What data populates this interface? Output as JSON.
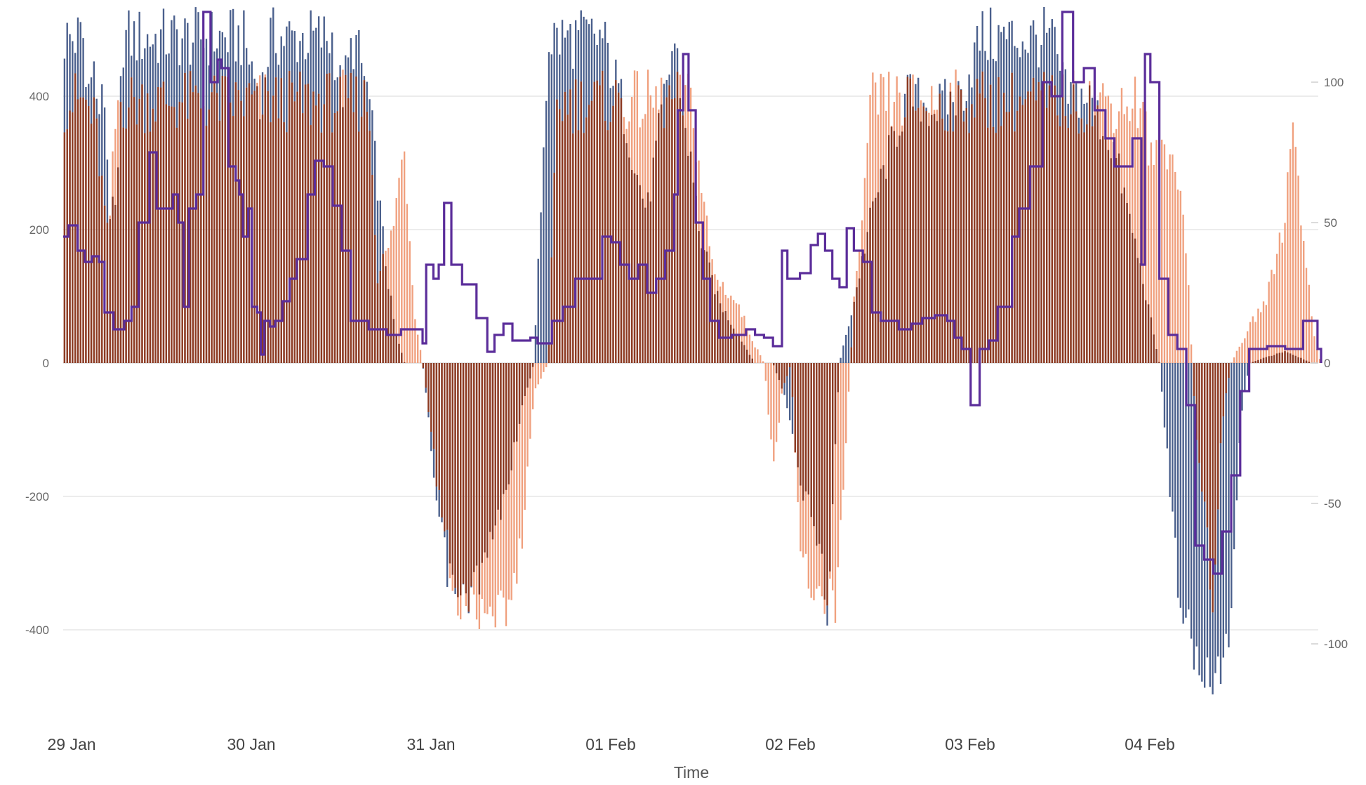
{
  "chart_data": {
    "type": "bar",
    "title": "",
    "xlabel": "Time",
    "ylabel_left": "",
    "ylabel_right": "",
    "x_ticks": [
      "29 Jan",
      "30 Jan",
      "31 Jan",
      "01 Feb",
      "02 Feb",
      "03 Feb",
      "04 Feb"
    ],
    "x_range_days": [
      0,
      7
    ],
    "ylim_left": [
      -540,
      540
    ],
    "ylim_right": [
      -130,
      130
    ],
    "y_ticks_left": [
      "-400",
      "-200",
      "0",
      "200",
      "400"
    ],
    "y_ticks_right": [
      "-100",
      "-50",
      "0",
      "50",
      "100"
    ],
    "grid": true,
    "legend": "none",
    "colors": {
      "blue_series": "#4a5f8c",
      "orange_series": "#f0a07e",
      "overlap": "#8c3a22",
      "line_series": "#5b2d9a",
      "grid": "#e6e6e6",
      "tick_text": "#666666"
    },
    "series": [
      {
        "type": "bar",
        "axis": "left",
        "color": "blue_series",
        "keypoints": [
          [
            0,
            535
          ],
          [
            0.12,
            535
          ],
          [
            0.13,
            410
          ],
          [
            0.16,
            535
          ],
          [
            0.19,
            410
          ],
          [
            0.23,
            440
          ],
          [
            0.26,
            250
          ],
          [
            0.3,
            250
          ],
          [
            0.33,
            535
          ],
          [
            1.0,
            535
          ],
          [
            1.1,
            440
          ],
          [
            1.15,
            535
          ],
          [
            1.5,
            535
          ],
          [
            1.55,
            440
          ],
          [
            1.62,
            535
          ],
          [
            1.7,
            440
          ],
          [
            1.8,
            150
          ],
          [
            1.85,
            50
          ],
          [
            1.9,
            0
          ],
          [
            2.0,
            0
          ],
          [
            2.08,
            -240
          ],
          [
            2.15,
            -360
          ],
          [
            2.22,
            -400
          ],
          [
            2.35,
            -330
          ],
          [
            2.45,
            -230
          ],
          [
            2.55,
            -80
          ],
          [
            2.62,
            0
          ],
          [
            2.7,
            535
          ],
          [
            3.0,
            535
          ],
          [
            3.1,
            440
          ],
          [
            3.2,
            300
          ],
          [
            3.25,
            250
          ],
          [
            3.3,
            350
          ],
          [
            3.4,
            535
          ],
          [
            3.55,
            200
          ],
          [
            3.65,
            100
          ],
          [
            3.75,
            50
          ],
          [
            3.85,
            0
          ],
          [
            3.95,
            0
          ],
          [
            4.02,
            -60
          ],
          [
            4.1,
            -200
          ],
          [
            4.2,
            -280
          ],
          [
            4.25,
            -420
          ],
          [
            4.32,
            0
          ],
          [
            4.4,
            100
          ],
          [
            4.5,
            250
          ],
          [
            4.6,
            350
          ],
          [
            4.7,
            440
          ],
          [
            4.85,
            420
          ],
          [
            5.0,
            440
          ],
          [
            5.1,
            535
          ],
          [
            5.5,
            535
          ],
          [
            5.58,
            440
          ],
          [
            5.7,
            440
          ],
          [
            5.85,
            350
          ],
          [
            6.0,
            150
          ],
          [
            6.1,
            0
          ],
          [
            6.2,
            -350
          ],
          [
            6.3,
            -500
          ],
          [
            6.45,
            -500
          ],
          [
            6.5,
            -400
          ],
          [
            6.55,
            -100
          ],
          [
            6.6,
            0
          ],
          [
            6.8,
            20
          ],
          [
            6.95,
            0
          ],
          [
            7.0,
            0
          ]
        ]
      },
      {
        "type": "bar",
        "axis": "left",
        "color": "orange_series",
        "keypoints": [
          [
            0,
            440
          ],
          [
            0.12,
            440
          ],
          [
            0.18,
            400
          ],
          [
            0.25,
            200
          ],
          [
            0.3,
            440
          ],
          [
            1.0,
            440
          ],
          [
            1.5,
            440
          ],
          [
            1.7,
            440
          ],
          [
            1.75,
            150
          ],
          [
            1.82,
            200
          ],
          [
            1.9,
            370
          ],
          [
            1.95,
            100
          ],
          [
            2.0,
            0
          ],
          [
            2.08,
            -200
          ],
          [
            2.18,
            -405
          ],
          [
            2.5,
            -405
          ],
          [
            2.55,
            -300
          ],
          [
            2.62,
            -50
          ],
          [
            2.7,
            0
          ],
          [
            2.75,
            440
          ],
          [
            3.5,
            440
          ],
          [
            3.55,
            300
          ],
          [
            3.62,
            150
          ],
          [
            3.75,
            100
          ],
          [
            3.85,
            30
          ],
          [
            3.9,
            0
          ],
          [
            3.95,
            -180
          ],
          [
            4.0,
            -50
          ],
          [
            4.05,
            0
          ],
          [
            4.1,
            -300
          ],
          [
            4.2,
            -405
          ],
          [
            4.3,
            -405
          ],
          [
            4.4,
            100
          ],
          [
            4.45,
            250
          ],
          [
            4.5,
            440
          ],
          [
            5.45,
            440
          ],
          [
            5.6,
            440
          ],
          [
            6.0,
            440
          ],
          [
            6.05,
            340
          ],
          [
            6.2,
            340
          ],
          [
            6.25,
            200
          ],
          [
            6.3,
            -100
          ],
          [
            6.4,
            -400
          ],
          [
            6.45,
            -100
          ],
          [
            6.5,
            0
          ],
          [
            6.6,
            60
          ],
          [
            6.7,
            110
          ],
          [
            6.8,
            250
          ],
          [
            6.85,
            440
          ],
          [
            6.9,
            200
          ],
          [
            6.97,
            30
          ],
          [
            7.0,
            0
          ]
        ]
      },
      {
        "type": "line",
        "axis": "right",
        "color": "line_series",
        "step": true,
        "keypoints": [
          [
            0,
            45
          ],
          [
            0.03,
            49
          ],
          [
            0.08,
            40
          ],
          [
            0.12,
            36
          ],
          [
            0.16,
            38
          ],
          [
            0.2,
            36
          ],
          [
            0.23,
            18
          ],
          [
            0.28,
            12
          ],
          [
            0.34,
            15
          ],
          [
            0.38,
            20
          ],
          [
            0.42,
            50
          ],
          [
            0.48,
            75
          ],
          [
            0.52,
            55
          ],
          [
            0.57,
            55
          ],
          [
            0.61,
            60
          ],
          [
            0.64,
            50
          ],
          [
            0.67,
            20
          ],
          [
            0.7,
            55
          ],
          [
            0.74,
            60
          ],
          [
            0.78,
            125
          ],
          [
            0.82,
            100
          ],
          [
            0.86,
            108
          ],
          [
            0.88,
            105
          ],
          [
            0.92,
            70
          ],
          [
            0.96,
            65
          ],
          [
            0.98,
            60
          ],
          [
            1.0,
            45
          ],
          [
            1.03,
            55
          ],
          [
            1.05,
            20
          ],
          [
            1.08,
            18
          ],
          [
            1.1,
            3
          ],
          [
            1.12,
            15
          ],
          [
            1.15,
            13
          ],
          [
            1.18,
            15
          ],
          [
            1.22,
            22
          ],
          [
            1.26,
            30
          ],
          [
            1.3,
            37
          ],
          [
            1.36,
            60
          ],
          [
            1.4,
            72
          ],
          [
            1.45,
            70
          ],
          [
            1.5,
            56
          ],
          [
            1.55,
            40
          ],
          [
            1.6,
            15
          ],
          [
            1.7,
            12
          ],
          [
            1.75,
            12
          ],
          [
            1.8,
            10
          ],
          [
            1.88,
            12
          ],
          [
            1.95,
            12
          ],
          [
            2.0,
            7
          ],
          [
            2.02,
            35
          ],
          [
            2.06,
            30
          ],
          [
            2.09,
            35
          ],
          [
            2.12,
            57
          ],
          [
            2.16,
            35
          ],
          [
            2.22,
            28
          ],
          [
            2.3,
            16
          ],
          [
            2.36,
            4
          ],
          [
            2.4,
            10
          ],
          [
            2.45,
            14
          ],
          [
            2.5,
            8
          ],
          [
            2.55,
            8
          ],
          [
            2.6,
            9
          ],
          [
            2.64,
            7
          ],
          [
            2.68,
            7
          ],
          [
            2.72,
            15
          ],
          [
            2.78,
            20
          ],
          [
            2.85,
            30
          ],
          [
            3.0,
            45
          ],
          [
            3.05,
            43
          ],
          [
            3.1,
            35
          ],
          [
            3.15,
            30
          ],
          [
            3.2,
            35
          ],
          [
            3.25,
            25
          ],
          [
            3.3,
            30
          ],
          [
            3.35,
            40
          ],
          [
            3.4,
            60
          ],
          [
            3.42,
            90
          ],
          [
            3.45,
            110
          ],
          [
            3.48,
            90
          ],
          [
            3.52,
            50
          ],
          [
            3.56,
            30
          ],
          [
            3.6,
            15
          ],
          [
            3.65,
            9
          ],
          [
            3.72,
            10
          ],
          [
            3.8,
            12
          ],
          [
            3.85,
            10
          ],
          [
            3.9,
            9
          ],
          [
            3.95,
            6
          ],
          [
            4.0,
            40
          ],
          [
            4.03,
            30
          ],
          [
            4.06,
            30
          ],
          [
            4.1,
            32
          ],
          [
            4.16,
            42
          ],
          [
            4.2,
            46
          ],
          [
            4.24,
            40
          ],
          [
            4.28,
            30
          ],
          [
            4.32,
            27
          ],
          [
            4.36,
            48
          ],
          [
            4.4,
            40
          ],
          [
            4.45,
            36
          ],
          [
            4.5,
            18
          ],
          [
            4.55,
            15
          ],
          [
            4.65,
            12
          ],
          [
            4.72,
            14
          ],
          [
            4.78,
            16
          ],
          [
            4.85,
            17
          ],
          [
            4.92,
            15
          ],
          [
            4.96,
            9
          ],
          [
            5.0,
            5
          ],
          [
            5.05,
            -15
          ],
          [
            5.1,
            5
          ],
          [
            5.15,
            8
          ],
          [
            5.2,
            20
          ],
          [
            5.28,
            45
          ],
          [
            5.32,
            55
          ],
          [
            5.38,
            70
          ],
          [
            5.45,
            100
          ],
          [
            5.5,
            95
          ],
          [
            5.56,
            125
          ],
          [
            5.62,
            100
          ],
          [
            5.68,
            105
          ],
          [
            5.74,
            90
          ],
          [
            5.8,
            80
          ],
          [
            5.85,
            70
          ],
          [
            5.9,
            70
          ],
          [
            5.95,
            80
          ],
          [
            6.0,
            35
          ],
          [
            6.02,
            110
          ],
          [
            6.05,
            100
          ],
          [
            6.1,
            30
          ],
          [
            6.15,
            10
          ],
          [
            6.2,
            5
          ],
          [
            6.25,
            -15
          ],
          [
            6.3,
            -65
          ],
          [
            6.35,
            -70
          ],
          [
            6.4,
            -75
          ],
          [
            6.45,
            -60
          ],
          [
            6.5,
            -40
          ],
          [
            6.55,
            -10
          ],
          [
            6.6,
            5
          ],
          [
            6.7,
            6
          ],
          [
            6.8,
            5
          ],
          [
            6.9,
            15
          ],
          [
            6.98,
            5
          ],
          [
            7.0,
            0
          ]
        ]
      }
    ]
  }
}
